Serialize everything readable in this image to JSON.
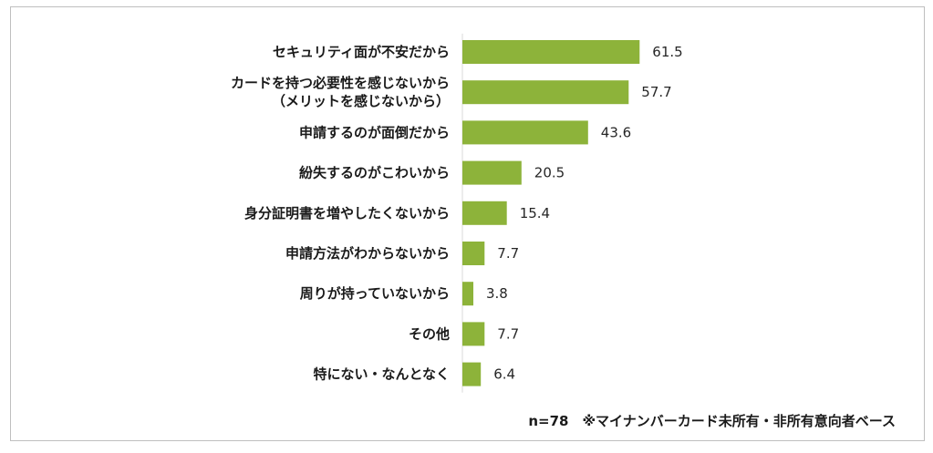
{
  "chart_data": {
    "type": "bar",
    "orientation": "horizontal",
    "categories": [
      [
        "セキュリティ面が不安だから"
      ],
      [
        "カードを持つ必要性を感じないから",
        "（メリットを感じないから）"
      ],
      [
        "申請するのが面倒だから"
      ],
      [
        "紛失するのがこわいから"
      ],
      [
        "身分証明書を増やしたくないから"
      ],
      [
        "申請方法がわからないから"
      ],
      [
        "周りが持っていないから"
      ],
      [
        "その他"
      ],
      [
        "特にない・なんとなく"
      ]
    ],
    "values": [
      61.5,
      57.7,
      43.6,
      20.5,
      15.4,
      7.7,
      3.8,
      7.7,
      6.4
    ],
    "value_labels": [
      "61.5",
      "57.7",
      "43.6",
      "20.5",
      "15.4",
      "7.7",
      "3.8",
      "7.7",
      "6.4"
    ],
    "title": "",
    "xlabel": "",
    "ylabel": "",
    "xlim": [
      0,
      100
    ],
    "grid": false,
    "legend": "none",
    "bar_color": "#8db33a",
    "note": "n=78　※マイナンバーカード未所有・非所有意向者ベース"
  }
}
